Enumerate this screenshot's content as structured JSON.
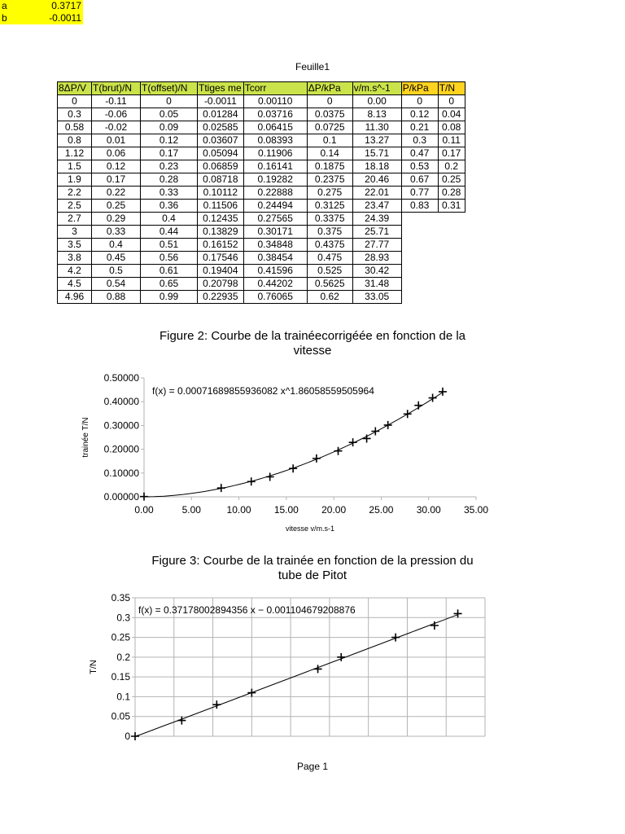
{
  "sheet_title": "Feuille1",
  "page_footer": "Page 1",
  "colors": {
    "header_fill": "#cbe34a",
    "p_fill": "#ffd320",
    "coef_fill": "#ffff00",
    "line": "#000000",
    "grid": "#b3b3b3"
  },
  "table": {
    "headers": [
      "8ΔP/V",
      "T(brut)/N",
      "T(offset)/N",
      "Ttiges me",
      "Tcorr",
      "ΔP/kPa",
      "v/m.s^-1",
      "P/kPa",
      "T/N"
    ],
    "rows": [
      [
        "0",
        "-0.11",
        "0",
        "-0.0011",
        "0.00110",
        "0",
        "0.00",
        "0",
        "0"
      ],
      [
        "0.3",
        "-0.06",
        "0.05",
        "0.01284",
        "0.03716",
        "0.0375",
        "8.13",
        "0.12",
        "0.04"
      ],
      [
        "0.58",
        "-0.02",
        "0.09",
        "0.02585",
        "0.06415",
        "0.0725",
        "11.30",
        "0.21",
        "0.08"
      ],
      [
        "0.8",
        "0.01",
        "0.12",
        "0.03607",
        "0.08393",
        "0.1",
        "13.27",
        "0.3",
        "0.11"
      ],
      [
        "1.12",
        "0.06",
        "0.17",
        "0.05094",
        "0.11906",
        "0.14",
        "15.71",
        "0.47",
        "0.17"
      ],
      [
        "1.5",
        "0.12",
        "0.23",
        "0.06859",
        "0.16141",
        "0.1875",
        "18.18",
        "0.53",
        "0.2"
      ],
      [
        "1.9",
        "0.17",
        "0.28",
        "0.08718",
        "0.19282",
        "0.2375",
        "20.46",
        "0.67",
        "0.25"
      ],
      [
        "2.2",
        "0.22",
        "0.33",
        "0.10112",
        "0.22888",
        "0.275",
        "22.01",
        "0.77",
        "0.28"
      ],
      [
        "2.5",
        "0.25",
        "0.36",
        "0.11506",
        "0.24494",
        "0.3125",
        "23.47",
        "0.83",
        "0.31"
      ],
      [
        "2.7",
        "0.29",
        "0.4",
        "0.12435",
        "0.27565",
        "0.3375",
        "24.39",
        "",
        ""
      ],
      [
        "3",
        "0.33",
        "0.44",
        "0.13829",
        "0.30171",
        "0.375",
        "25.71",
        "",
        ""
      ],
      [
        "3.5",
        "0.4",
        "0.51",
        "0.16152",
        "0.34848",
        "0.4375",
        "27.77",
        "",
        ""
      ],
      [
        "3.8",
        "0.45",
        "0.56",
        "0.17546",
        "0.38454",
        "0.475",
        "28.93",
        "",
        ""
      ],
      [
        "4.2",
        "0.5",
        "0.61",
        "0.19404",
        "0.41596",
        "0.525",
        "30.42",
        "",
        ""
      ],
      [
        "4.5",
        "0.54",
        "0.65",
        "0.20798",
        "0.44202",
        "0.5625",
        "31.48",
        "",
        ""
      ],
      [
        "4.96",
        "0.88",
        "0.99",
        "0.22935",
        "0.76065",
        "0.62",
        "33.05",
        "",
        ""
      ]
    ]
  },
  "coefficients": [
    {
      "name": "a",
      "value": "0.3717"
    },
    {
      "name": "b",
      "value": "-0.0011"
    }
  ],
  "chart_data": [
    {
      "type": "scatter",
      "title": "Figure 2: Courbe de la trainéecorrigéée en fonction de la vitesse",
      "title_lines": [
        "Figure 2: Courbe de la trainéecorrigéée en fonction de la",
        "vitesse"
      ],
      "xlabel": "vitesse v/m.s-1",
      "ylabel": "trainée T/N",
      "xlim": [
        0,
        35
      ],
      "ylim": [
        0,
        0.5
      ],
      "xticks": [
        "0.00",
        "5.00",
        "10.00",
        "15.00",
        "20.00",
        "25.00",
        "30.00",
        "35.00"
      ],
      "yticks": [
        "0.00000",
        "0.10000",
        "0.20000",
        "0.30000",
        "0.40000",
        "0.50000"
      ],
      "trendline_label": "f(x) = 0.00071689855936082 x^1.86058559505964",
      "trendline": {
        "kind": "power",
        "a": 0.00071689855936082,
        "b": 1.86058559505964
      },
      "x": [
        0.0,
        8.13,
        11.3,
        13.27,
        15.71,
        18.18,
        20.46,
        22.01,
        23.47,
        24.39,
        25.71,
        27.77,
        28.93,
        30.42,
        31.48
      ],
      "y": [
        0.0011,
        0.03716,
        0.06415,
        0.08393,
        0.11906,
        0.16141,
        0.19282,
        0.22888,
        0.24494,
        0.27565,
        0.30171,
        0.34848,
        0.38454,
        0.41596,
        0.44202
      ],
      "grid": false
    },
    {
      "type": "scatter",
      "title": "Figure 3: Courbe de la trainée en fonction de la pression du tube de Pitot",
      "title_lines": [
        "Figure 3: Courbe de la trainée en fonction de la pression du",
        "tube de Pitot"
      ],
      "xlabel": "",
      "ylabel": "T/N",
      "xlim": [
        0,
        0.9
      ],
      "ylim": [
        0,
        0.35
      ],
      "yticks": [
        "0",
        "0.05",
        "0.1",
        "0.15",
        "0.2",
        "0.25",
        "0.3",
        "0.35"
      ],
      "trendline_label": "f(x) = 0.37178002894356 x − 0.001104679208876",
      "trendline": {
        "kind": "linear",
        "a": 0.37178002894356,
        "b": -0.001104679208876
      },
      "x": [
        0,
        0.12,
        0.21,
        0.3,
        0.47,
        0.53,
        0.67,
        0.77,
        0.83
      ],
      "y": [
        0,
        0.04,
        0.08,
        0.11,
        0.17,
        0.2,
        0.25,
        0.28,
        0.31
      ],
      "grid": true
    }
  ]
}
